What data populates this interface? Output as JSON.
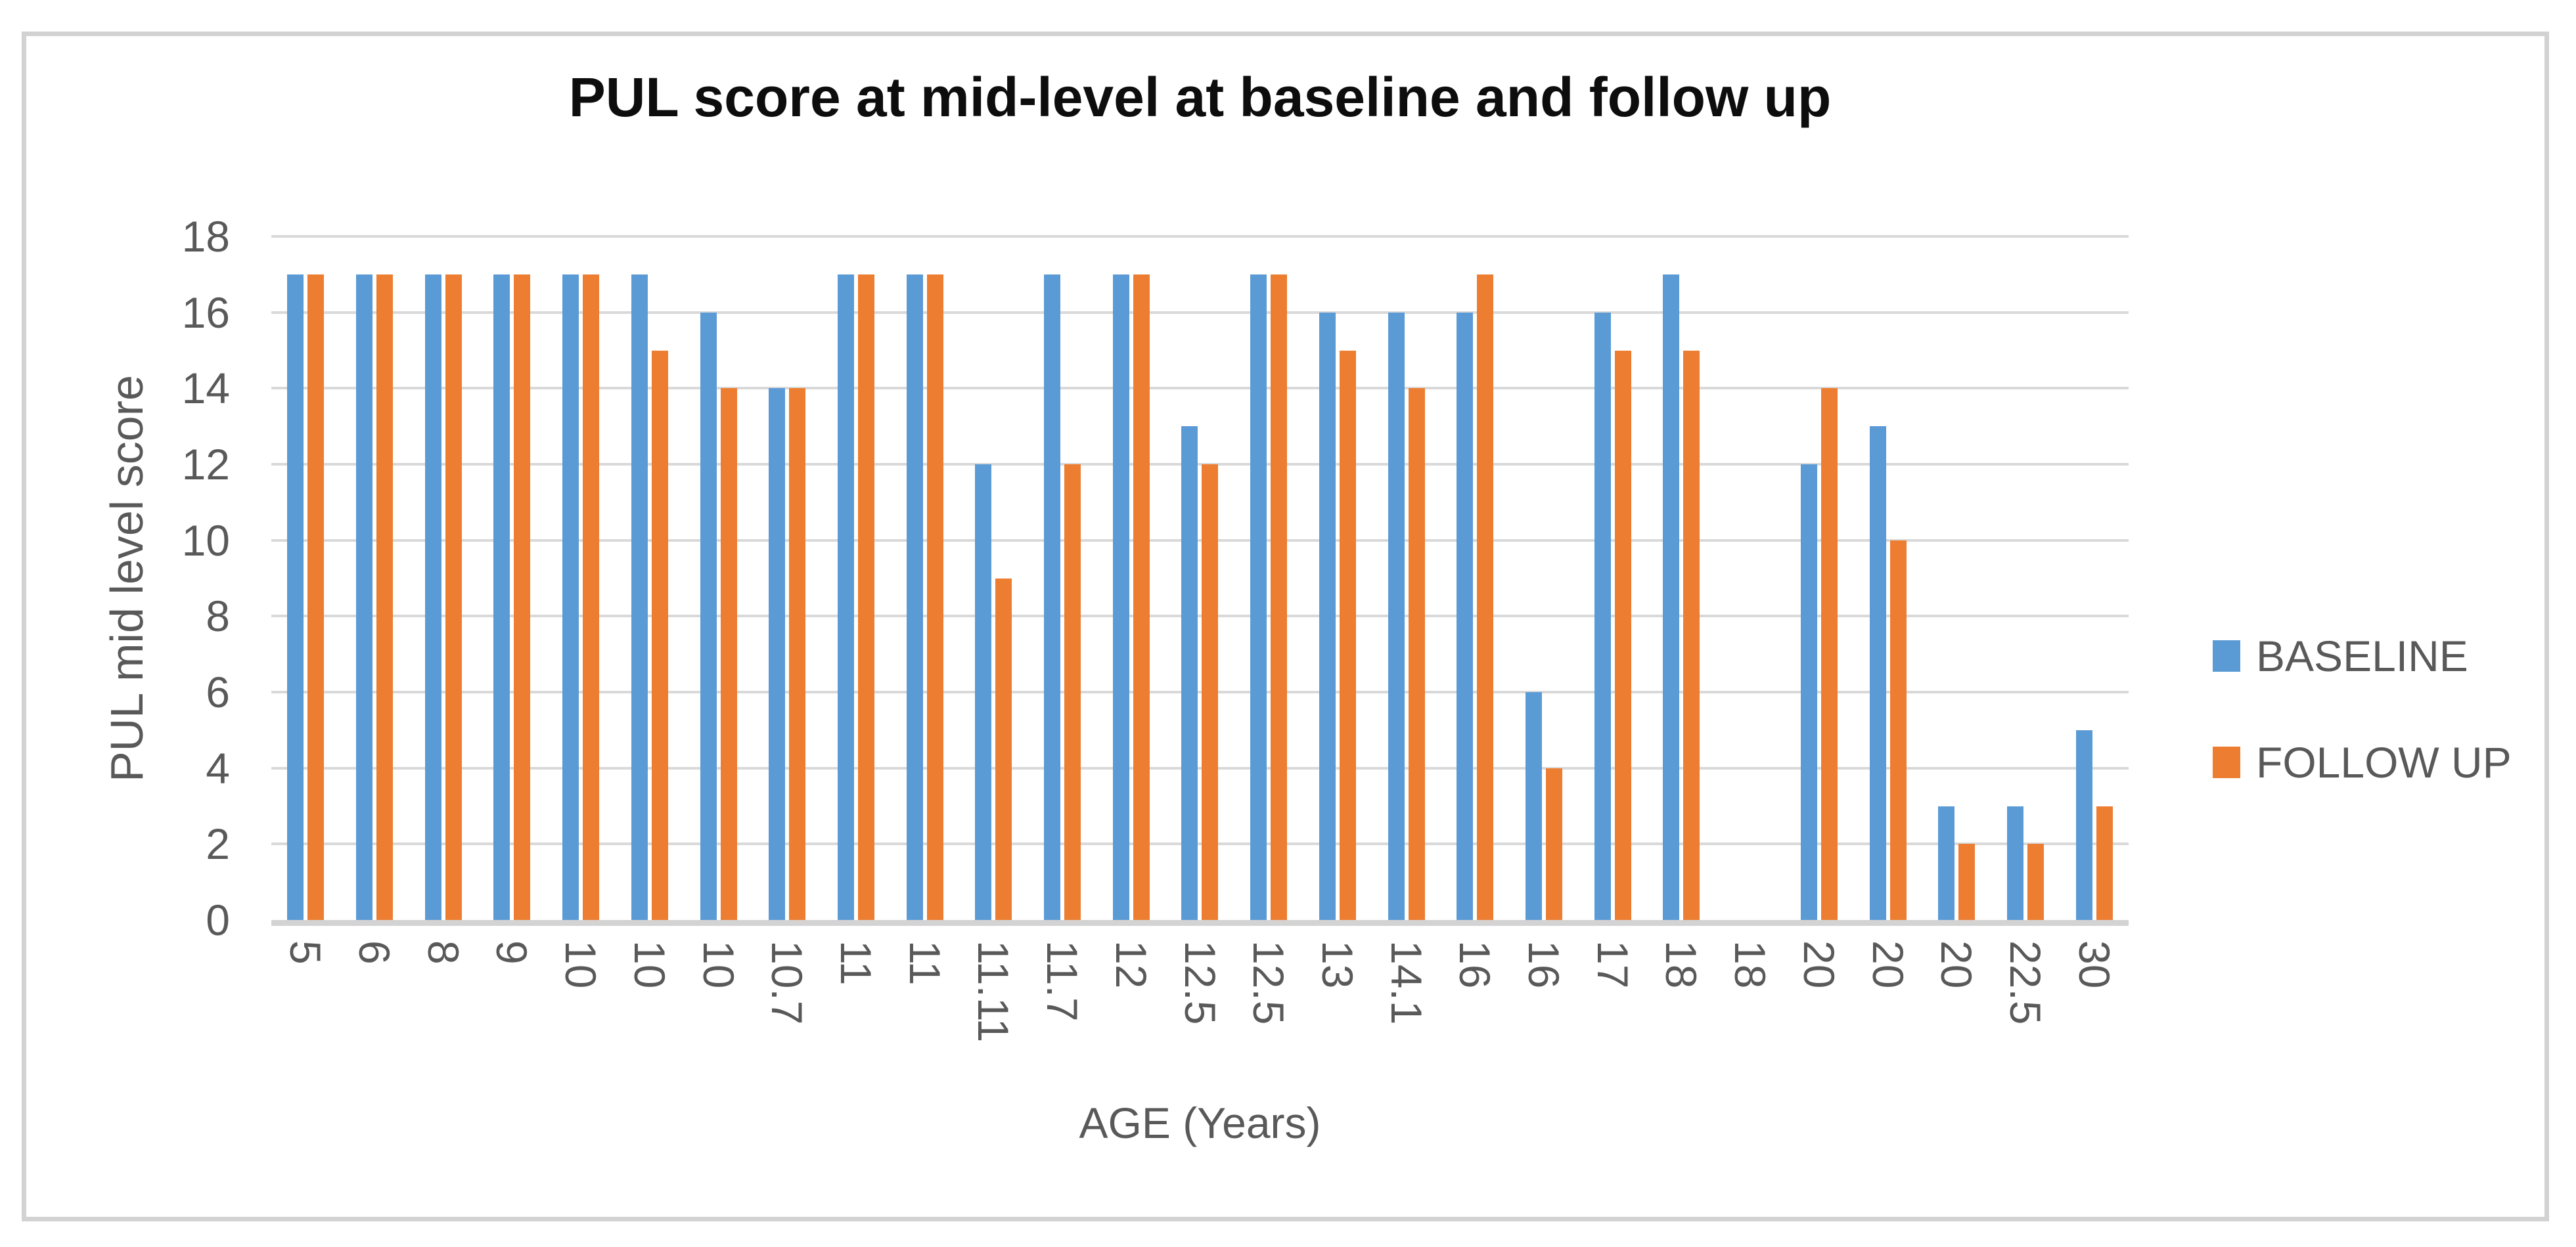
{
  "chart_data": {
    "type": "bar",
    "title": "PUL score at mid-level at baseline and follow up",
    "xlabel": "AGE (Years)",
    "ylabel": "PUL mid level score",
    "categories": [
      "5",
      "6",
      "8",
      "9",
      "10",
      "10",
      "10",
      "10.7",
      "11",
      "11",
      "11.11",
      "11.7",
      "12",
      "12.5",
      "12.5",
      "13",
      "14.1",
      "16",
      "16",
      "17",
      "18",
      "18",
      "20",
      "20",
      "20",
      "22.5",
      "30"
    ],
    "series": [
      {
        "name": "BASELINE",
        "color": "#5B9BD5",
        "values": [
          17,
          17,
          17,
          17,
          17,
          17,
          16,
          14,
          17,
          17,
          12,
          17,
          17,
          13,
          17,
          16,
          16,
          16,
          6,
          16,
          17,
          0,
          12,
          13,
          3,
          3,
          5
        ]
      },
      {
        "name": "FOLLOW UP",
        "color": "#ED7D31",
        "values": [
          17,
          17,
          17,
          17,
          17,
          15,
          14,
          14,
          17,
          17,
          9,
          12,
          17,
          12,
          17,
          15,
          14,
          17,
          4,
          15,
          15,
          0,
          14,
          10,
          2,
          2,
          3
        ]
      }
    ],
    "ylim": [
      0,
      18
    ],
    "ytick_step": 2,
    "yticks": [
      0,
      2,
      4,
      6,
      8,
      10,
      12,
      14,
      16,
      18
    ],
    "grid": true,
    "legend_position": "right"
  },
  "colors": {
    "baseline": "#5B9BD5",
    "follow_up": "#ED7D31",
    "gridline": "#D9D9D9",
    "axis_line": "#D3D3D3",
    "text_gray": "#595959",
    "title_black": "#0D0D0D",
    "frame_border": "#D2D2D2",
    "background": "#FFFFFF"
  }
}
